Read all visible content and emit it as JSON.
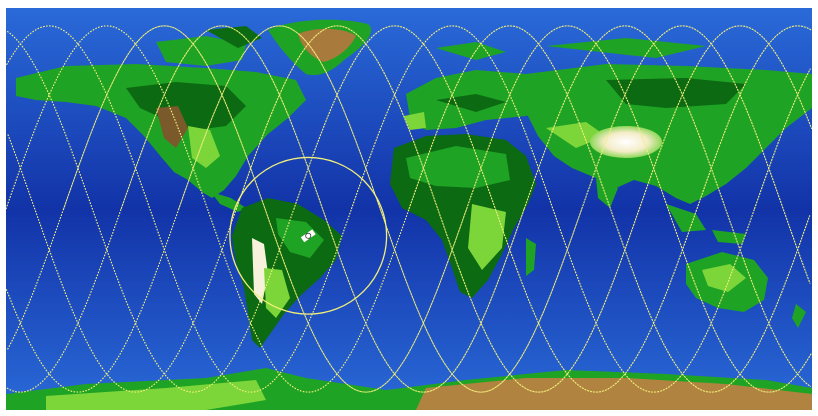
{
  "map": {
    "projection": "equirectangular",
    "colors": {
      "deep_ocean": "#0a1f8a",
      "ocean": "#1c46c4",
      "shelf": "#2a7fe0",
      "lowland": "#0c6a12",
      "land": "#1fa324",
      "highland": "#7cd63a",
      "mountain": "#7a5a2a",
      "ice_high": "#f6f2dc",
      "antarctica": "#b08440",
      "greenland_core": "#a87a3c",
      "ground_track": "#f2ee7a",
      "footprint": "#f2ee7a",
      "satellite": "#ffffff"
    },
    "ground_track": {
      "inclination_deg": 82,
      "passes": 14,
      "line_style": "dotted"
    },
    "satellite": {
      "icon": "satellite-icon",
      "lon": -45,
      "lat": -12,
      "footprint_radius_deg": 35
    }
  }
}
